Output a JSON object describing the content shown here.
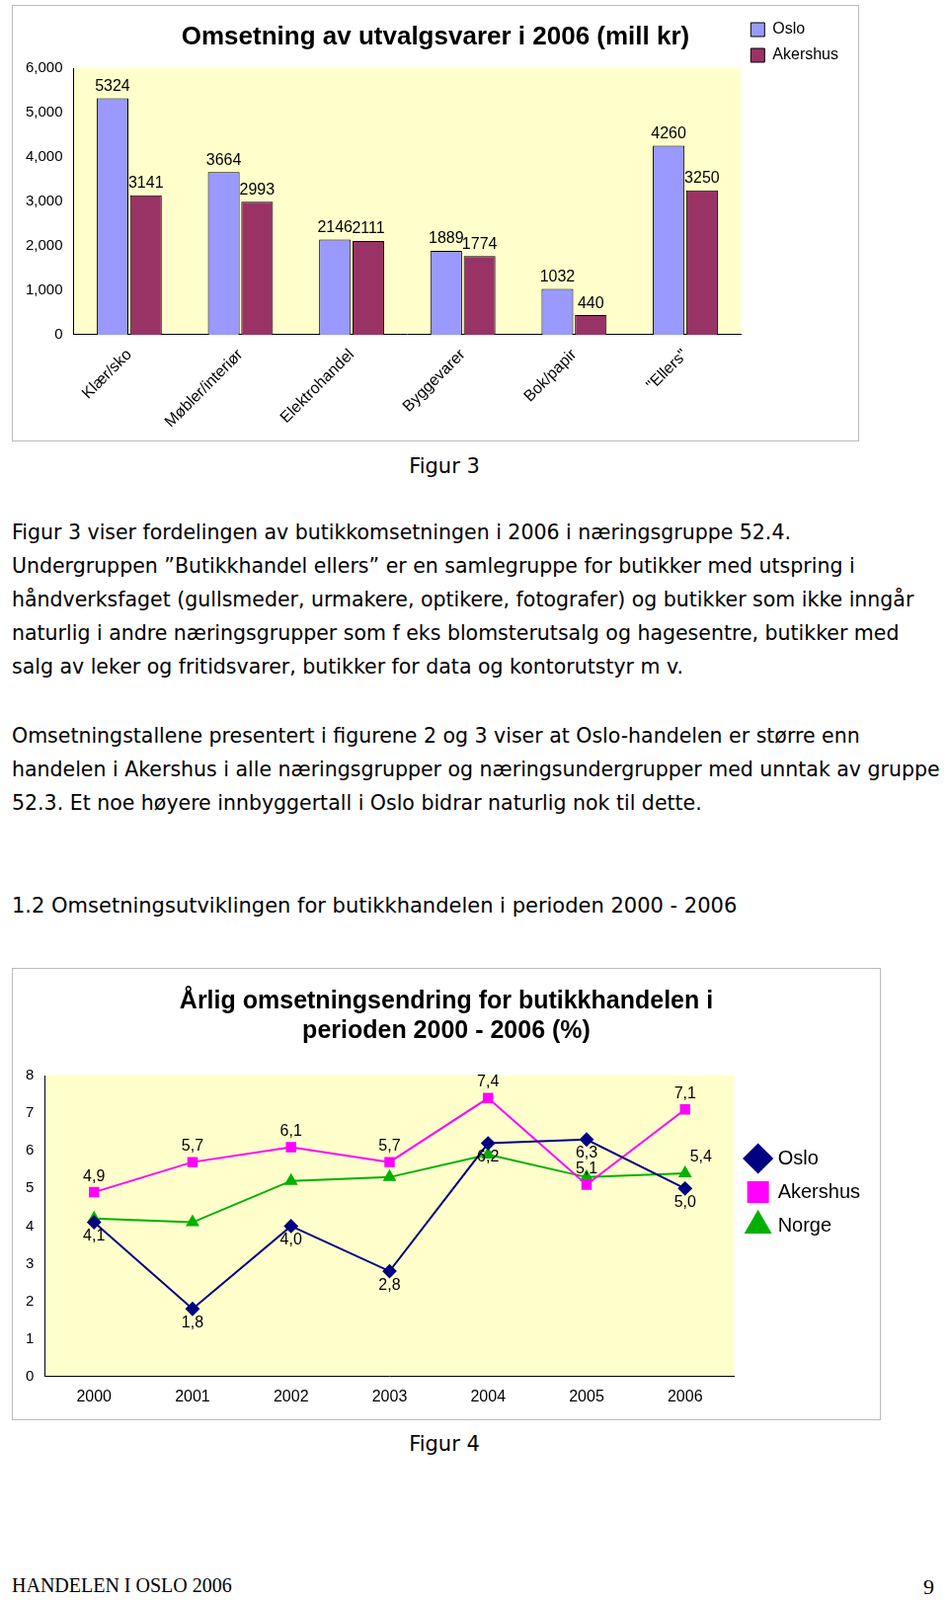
{
  "chart_data": [
    {
      "type": "bar",
      "title": "Omsetning av utvalgsvarer i 2006 (mill kr)",
      "categories": [
        "Klær/sko",
        "Møbler/interiør",
        "Elektrohandel",
        "Byggevarer",
        "Bok/papir",
        "\"Ellers\""
      ],
      "series": [
        {
          "name": "Oslo",
          "color": "#9999ff",
          "values": [
            5324,
            3664,
            2146,
            1889,
            1032,
            4260
          ]
        },
        {
          "name": "Akershus",
          "color": "#993366",
          "values": [
            3141,
            2993,
            2111,
            1774,
            440,
            3250
          ]
        }
      ],
      "ylim": [
        0,
        6000
      ],
      "yticks": [
        0,
        1000,
        2000,
        3000,
        4000,
        5000,
        6000
      ],
      "grid": false,
      "legend": "right",
      "data_labels": true,
      "caption": "Figur 3"
    },
    {
      "type": "line",
      "title": "Årlig omsetningsendring for butikkhandelen i perioden 2000 - 2006 (%)",
      "categories": [
        "2000",
        "2001",
        "2002",
        "2003",
        "2004",
        "2005",
        "2006"
      ],
      "series": [
        {
          "name": "Oslo",
          "color": "#000080",
          "marker": "diamond",
          "values": [
            4.1,
            1.8,
            4.0,
            2.8,
            6.2,
            6.3,
            5.0
          ],
          "value_labels": [
            "4,1",
            "1,8",
            "4,0",
            "2,8",
            "6,2",
            "6,3",
            "5,0"
          ]
        },
        {
          "name": "Akershus",
          "color": "#ff00ff",
          "marker": "square",
          "values": [
            4.9,
            5.7,
            6.1,
            5.7,
            7.4,
            5.1,
            7.1
          ],
          "value_labels": [
            "4,9",
            "5,7",
            "6,1",
            "5,7",
            "7,4",
            "5,1",
            "7,1"
          ]
        },
        {
          "name": "Norge",
          "color": "#00b000",
          "marker": "triangle",
          "values": [
            4.2,
            4.1,
            5.2,
            5.3,
            5.9,
            5.3,
            5.4
          ],
          "value_labels": [
            null,
            null,
            null,
            null,
            null,
            null,
            "5,4"
          ]
        }
      ],
      "ylim": [
        0,
        8
      ],
      "yticks": [
        0,
        1,
        2,
        3,
        4,
        5,
        6,
        7,
        8
      ],
      "grid": false,
      "legend": "right",
      "data_labels": true,
      "caption": "Figur 4"
    }
  ],
  "document": {
    "paragraphs": [
      "Figur 3 viser fordelingen av butikkomsetningen i 2006 i næringsgruppe 52.4. Undergruppen ”Butikkhandel ellers” er en samlegruppe for butikker med utspring i håndverksfaget (gullsmeder, urmakere, optikere, fotografer) og butikker som ikke inngår naturlig i andre næringsgrupper som f eks blomsterutsalg og hagesentre, butikker med salg av leker og fritidsvarer, butikker for data og kontorutstyr m v.",
      "Omsetningstallene presentert i figurene 2 og 3 viser at Oslo-handelen er større enn handelen i Akershus i alle næringsgrupper og næringsundergrupper med unntak av gruppe 52.3. Et noe høyere innbyggertall i Oslo bidrar naturlig nok til dette."
    ],
    "heading": "1.2 Omsetningsutviklingen for butikkhandelen i perioden 2000 - 2006",
    "footer": {
      "left": "HANDELEN I OSLO 2006",
      "page": "9"
    }
  }
}
